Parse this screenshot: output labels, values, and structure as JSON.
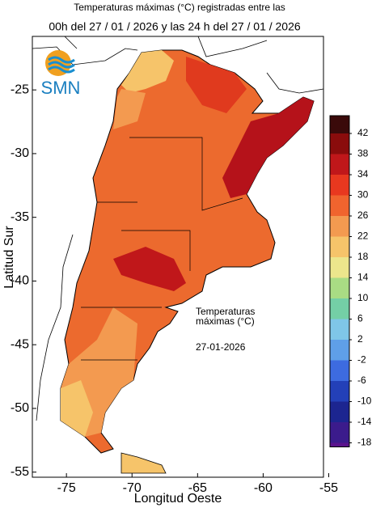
{
  "map": {
    "title": [
      "Temperaturas máximas (°C) registradas entre las",
      "00h del 27 / 01 / 2026 y las 24 h del 27 / 01 / 2026"
    ],
    "logo": "SMN",
    "xlabel": "Longitud Oeste",
    "ylabel": "Latitud Sur",
    "xlim": [
      -77.6,
      -55.4
    ],
    "ylim": [
      -55.4,
      -20.8
    ],
    "xticks": [
      -75,
      -70,
      -65,
      -60,
      -55
    ],
    "yticks": [
      -25,
      -30,
      -35,
      -40,
      -45,
      -50,
      -55
    ],
    "annotation": [
      "Temperaturas",
      "máximas (°C)",
      "27-01-2026"
    ],
    "colorbar": {
      "levels": [
        42,
        38,
        34,
        30,
        26,
        22,
        18,
        14,
        10,
        6,
        2,
        -2,
        -6,
        -10,
        -14,
        -18
      ],
      "colors": [
        "#3a0a0a",
        "#8a0c0c",
        "#c0171a",
        "#e8381f",
        "#f0642e",
        "#f39a50",
        "#f6c46a",
        "#ece68c",
        "#a9dc84",
        "#74cfa6",
        "#7fc6e8",
        "#5f9fe8",
        "#3d6be0",
        "#2340b8",
        "#1c2590",
        "#3b1b8c",
        "#5a138c"
      ]
    }
  }
}
